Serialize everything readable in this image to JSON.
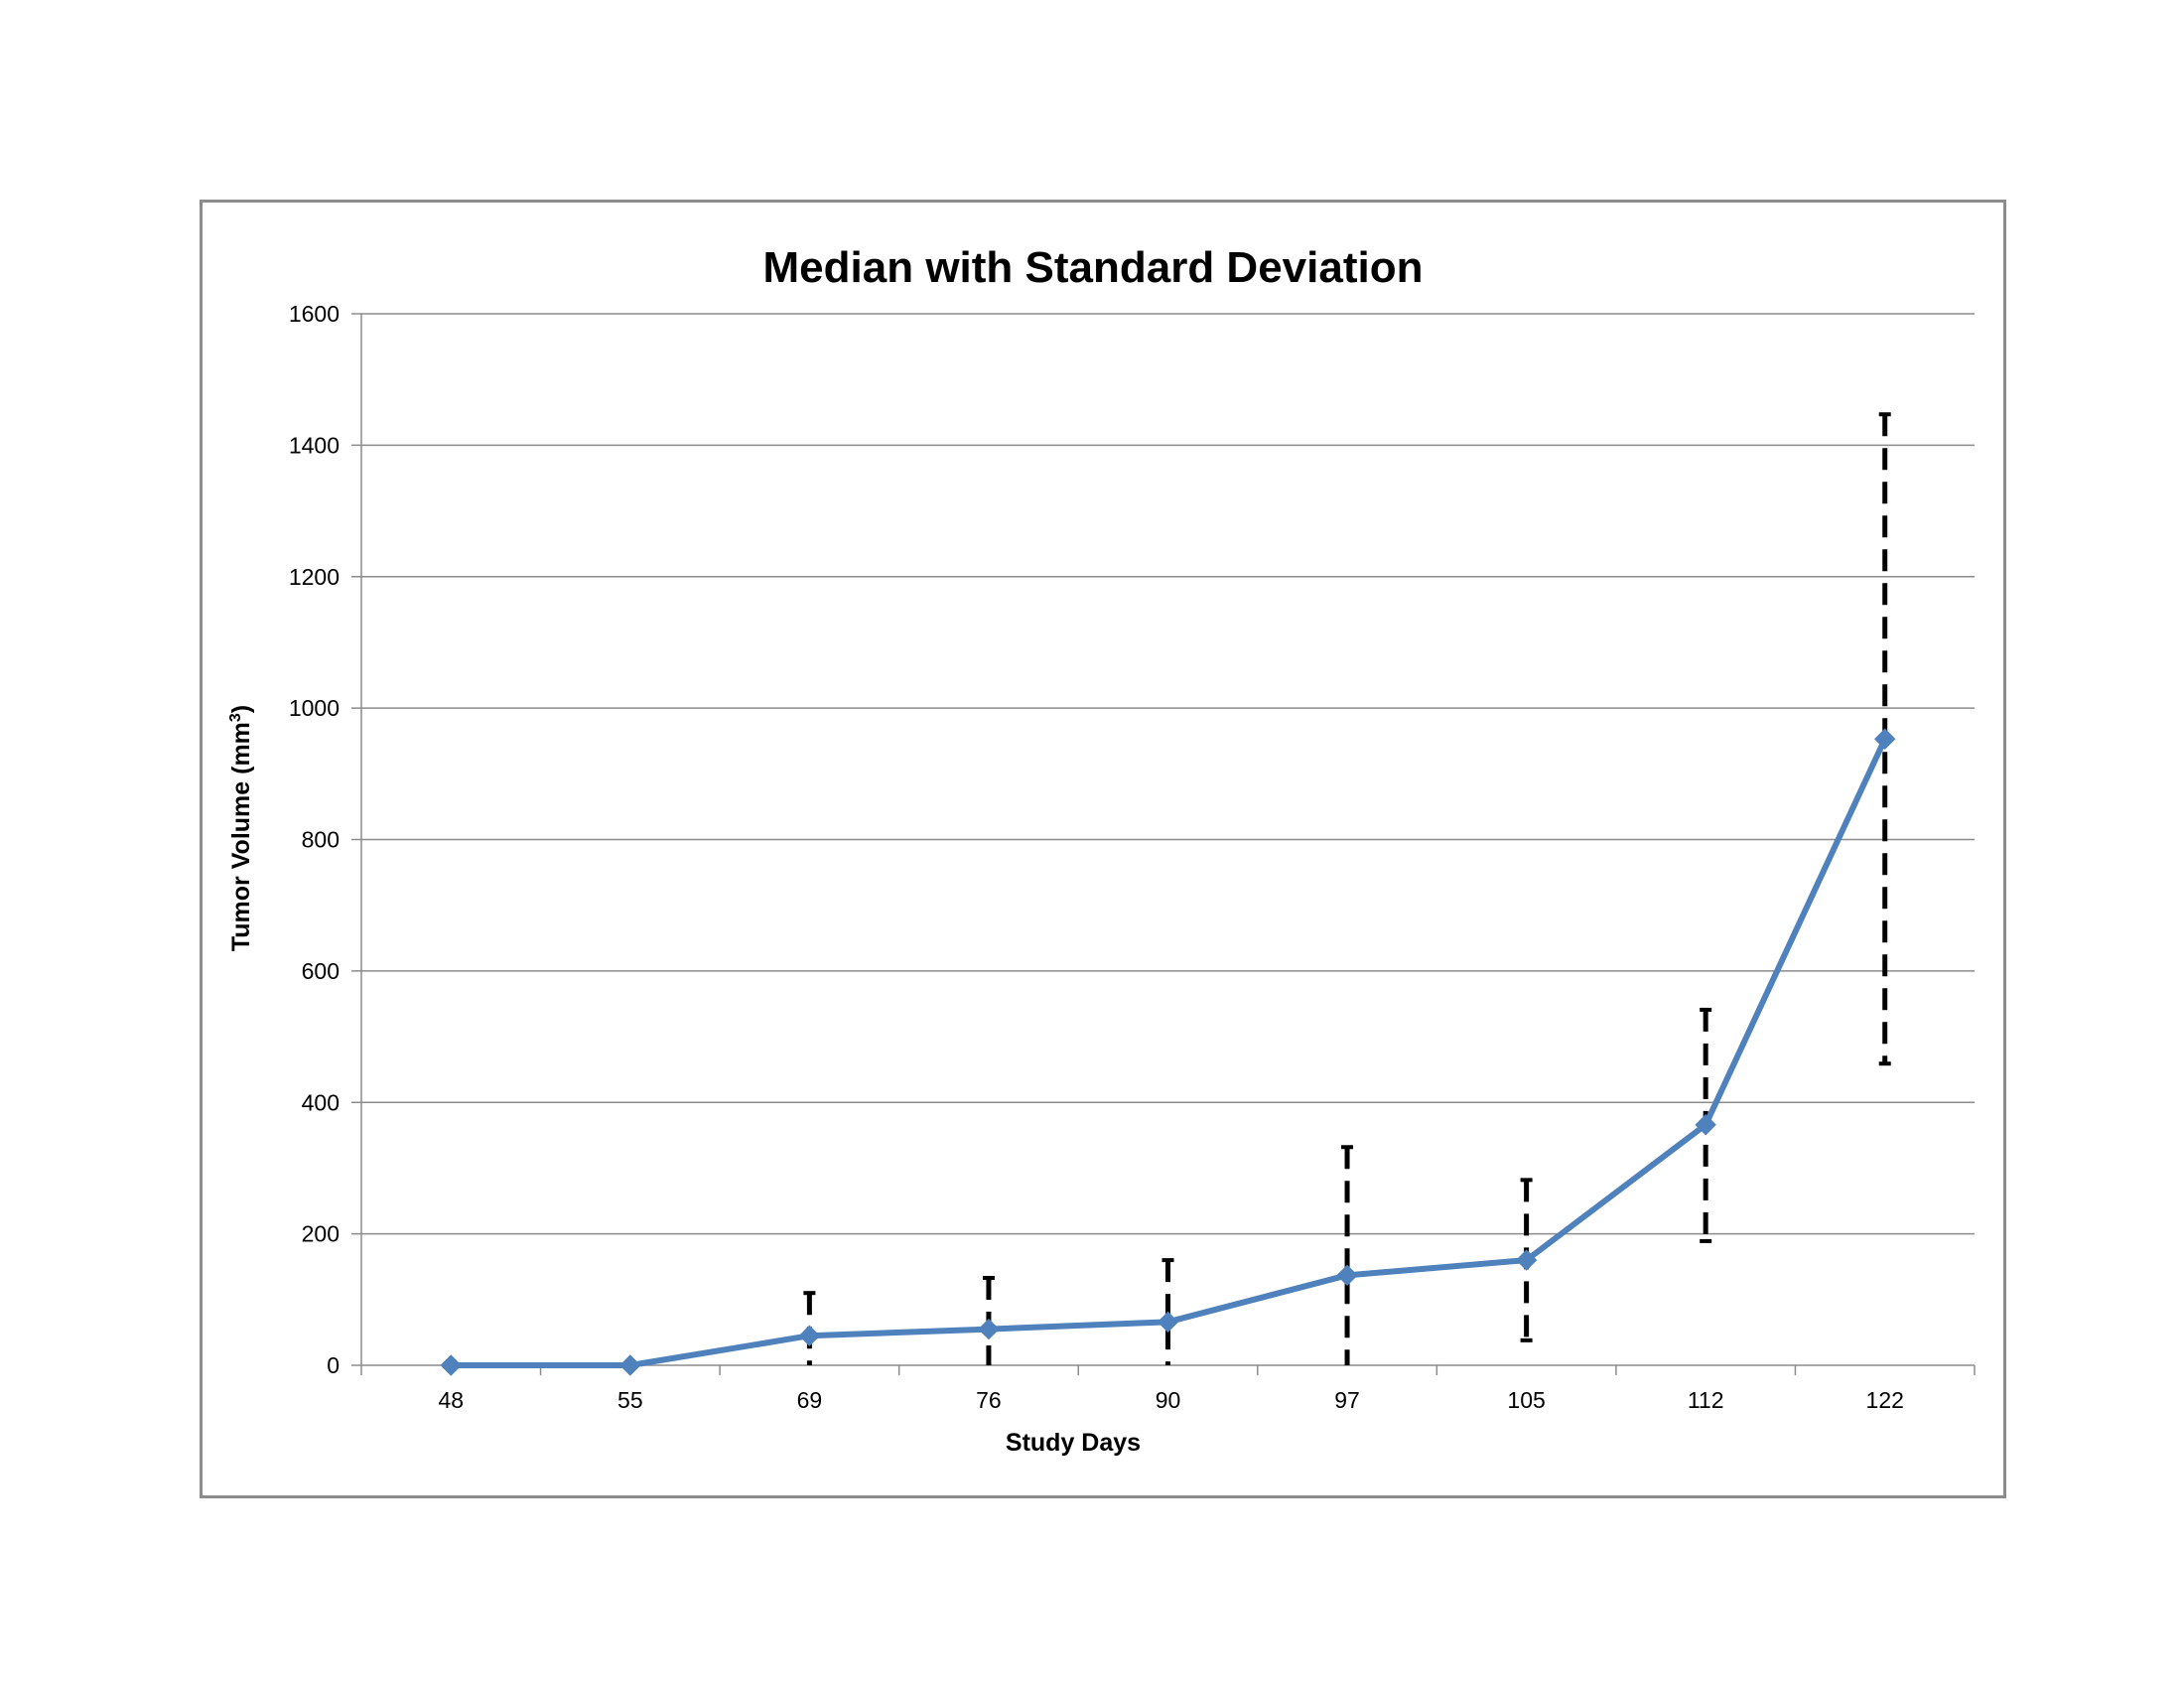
{
  "chart_data": {
    "type": "line",
    "title": "Median with Standard Deviation",
    "xlabel": "Study Days",
    "ylabel": "Tumor Volume (mm",
    "ylabel_sup": "3",
    "ylabel_close": ")",
    "ylim": [
      0,
      1600
    ],
    "yticks": [
      0,
      200,
      400,
      600,
      800,
      1000,
      1200,
      1400,
      1600
    ],
    "grid": true,
    "categories": [
      "48",
      "55",
      "69",
      "76",
      "90",
      "97",
      "105",
      "112",
      "122"
    ],
    "series": [
      {
        "values": [
          0,
          0,
          45,
          55,
          66,
          137,
          160,
          366,
          953
        ],
        "error_upper": [
          0,
          0,
          110,
          133,
          160,
          332,
          282,
          541,
          1447
        ],
        "error_lower": [
          0,
          0,
          0,
          0,
          0,
          0,
          38,
          189,
          459
        ],
        "color": "#4f81bd"
      }
    ],
    "error_bar_color": "#000000",
    "error_bar_style": "dashed"
  }
}
